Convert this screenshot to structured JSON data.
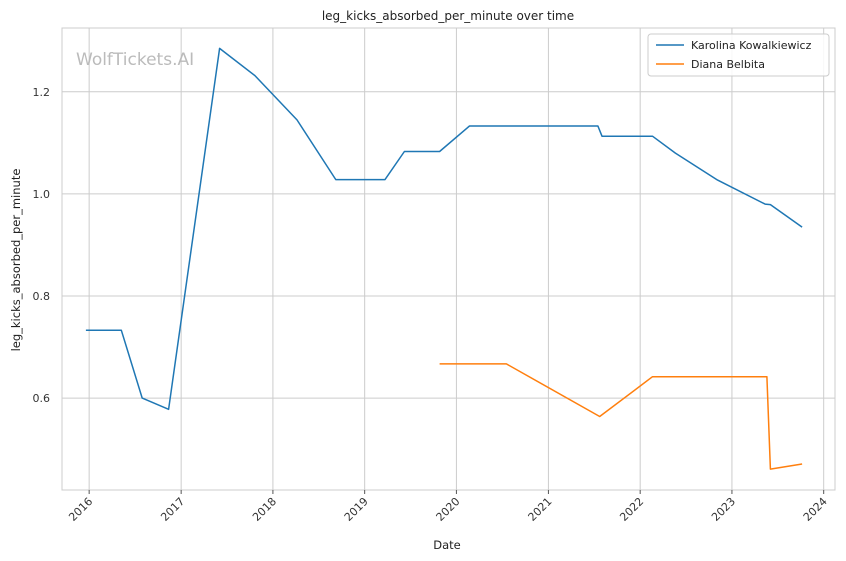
{
  "chart_data": {
    "type": "line",
    "title": "leg_kicks_absorbed_per_minute over time",
    "xlabel": "Date",
    "ylabel": "leg_kicks_absorbed_per_minute",
    "watermark": "WolfTickets.AI",
    "x_ticks": [
      "2016",
      "2017",
      "2018",
      "2019",
      "2020",
      "2021",
      "2022",
      "2023",
      "2024"
    ],
    "y_ticks": [
      "0.6",
      "0.8",
      "1.0",
      "1.2"
    ],
    "xlim": [
      "2015-09-15",
      "2024-02-15"
    ],
    "ylim": [
      0.42,
      1.325
    ],
    "grid": true,
    "legend_position": "top-right",
    "series": [
      {
        "name": "Karolina Kowalkiewicz",
        "color": "#1f77b4",
        "points": [
          [
            "2015-12-19",
            0.733
          ],
          [
            "2016-05-08",
            0.733
          ],
          [
            "2016-07-30",
            0.6
          ],
          [
            "2016-11-12",
            0.578
          ],
          [
            "2017-06-03",
            1.285
          ],
          [
            "2017-10-21",
            1.232
          ],
          [
            "2018-04-07",
            1.145
          ],
          [
            "2018-09-08",
            1.028
          ],
          [
            "2019-03-23",
            1.028
          ],
          [
            "2019-06-08",
            1.083
          ],
          [
            "2019-10-26",
            1.083
          ],
          [
            "2020-02-22",
            1.133
          ],
          [
            "2020-07-18",
            1.133
          ],
          [
            "2021-07-17",
            1.133
          ],
          [
            "2021-08-02",
            1.113
          ],
          [
            "2022-02-19",
            1.113
          ],
          [
            "2022-05-21",
            1.08
          ],
          [
            "2022-11-05",
            1.027
          ],
          [
            "2023-05-13",
            0.98
          ],
          [
            "2023-06-03",
            0.979
          ],
          [
            "2023-10-07",
            0.935
          ]
        ]
      },
      {
        "name": "Diana Belbita",
        "color": "#ff7f0e",
        "points": [
          [
            "2019-10-26",
            0.667
          ],
          [
            "2020-07-18",
            0.667
          ],
          [
            "2021-07-24",
            0.564
          ],
          [
            "2022-02-19",
            0.642
          ],
          [
            "2023-05-20",
            0.642
          ],
          [
            "2023-06-03",
            0.461
          ],
          [
            "2023-10-07",
            0.471
          ]
        ]
      }
    ]
  }
}
